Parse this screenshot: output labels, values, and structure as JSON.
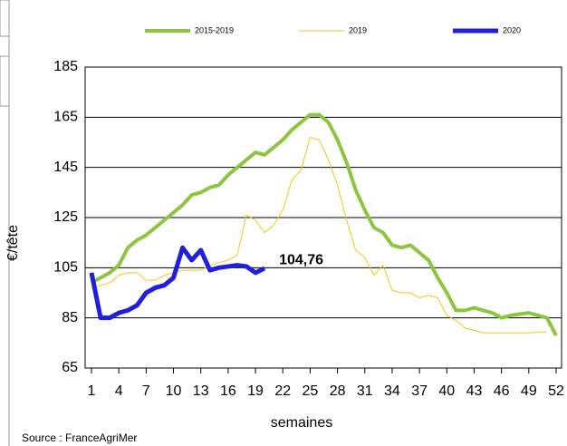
{
  "chart_data": {
    "type": "line",
    "x": [
      1,
      2,
      3,
      4,
      5,
      6,
      7,
      8,
      9,
      10,
      11,
      12,
      13,
      14,
      15,
      16,
      17,
      18,
      19,
      20,
      21,
      22,
      23,
      24,
      25,
      26,
      27,
      28,
      29,
      30,
      31,
      32,
      33,
      34,
      35,
      36,
      37,
      38,
      39,
      40,
      41,
      42,
      43,
      44,
      45,
      46,
      47,
      48,
      49,
      50,
      51,
      52
    ],
    "series": [
      {
        "name": "2015-2019",
        "color": "#8cc63f",
        "width": 4,
        "values": [
          99,
          101,
          103,
          106,
          113,
          116,
          118,
          121,
          124,
          127,
          130,
          134,
          135,
          137,
          138,
          142,
          145,
          148,
          151,
          150,
          153,
          156,
          160,
          163,
          166,
          166,
          163,
          156,
          147,
          136,
          128,
          121,
          119,
          114,
          113,
          114,
          111,
          108,
          101,
          95,
          88,
          88,
          89,
          88,
          87,
          85,
          86,
          86.5,
          87,
          86,
          85,
          78
        ]
      },
      {
        "name": "2019",
        "color": "#f5c518",
        "width": 1,
        "values": [
          97,
          98,
          99,
          102,
          103,
          103,
          100,
          100,
          102,
          103,
          104,
          104,
          104,
          106,
          107,
          108,
          110,
          126,
          124,
          119,
          122,
          128,
          140,
          144,
          157,
          156,
          148,
          138,
          124,
          112,
          109,
          102,
          106,
          96,
          95,
          95,
          93,
          94,
          93,
          86,
          84,
          81,
          80,
          79,
          79,
          79,
          79,
          79,
          79,
          79.3,
          79.4,
          null
        ]
      },
      {
        "name": "2020",
        "color": "#1f1fdd",
        "width": 5,
        "values": [
          103,
          85,
          85,
          87,
          88,
          90,
          95,
          97,
          98,
          101,
          113,
          108,
          112,
          104,
          105,
          105.5,
          106,
          105.5,
          103,
          104.76,
          null,
          null,
          null,
          null,
          null,
          null,
          null,
          null,
          null,
          null,
          null,
          null,
          null,
          null,
          null,
          null,
          null,
          null,
          null,
          null,
          null,
          null,
          null,
          null,
          null,
          null,
          null,
          null,
          null,
          null,
          null,
          null
        ]
      }
    ],
    "annotation": "104,76",
    "ylabel": "€/tête",
    "xlabel": "semaines",
    "source": "Source : FranceAgriMer",
    "xlim": [
      1,
      52
    ],
    "xticks": [
      1,
      4,
      7,
      10,
      13,
      16,
      19,
      22,
      25,
      28,
      31,
      34,
      37,
      40,
      43,
      46,
      49,
      52
    ],
    "ylim": [
      65,
      185
    ],
    "yticks": [
      65,
      85,
      105,
      125,
      145,
      165,
      185
    ],
    "grid": true
  }
}
